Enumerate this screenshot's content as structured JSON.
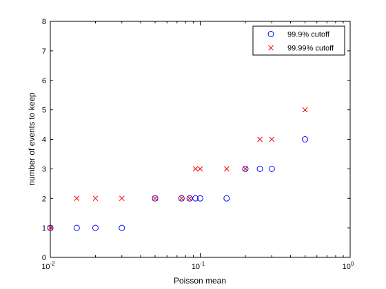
{
  "chart_data": {
    "type": "scatter",
    "xlabel": "Poisson mean",
    "ylabel": "number of events to keep",
    "xscale": "log",
    "xlim": [
      0.01,
      1
    ],
    "ylim": [
      0,
      8
    ],
    "x_ticks": [
      {
        "base": "10",
        "exp": "-2"
      },
      {
        "base": "10",
        "exp": "-1"
      },
      {
        "base": "10",
        "exp": "0"
      }
    ],
    "y_ticks": [
      "0",
      "1",
      "2",
      "3",
      "4",
      "5",
      "6",
      "7",
      "8"
    ],
    "legend_position": "top-right",
    "grid": false,
    "series": [
      {
        "name": "99.9% cutoff",
        "marker": "circle",
        "color": "#0000ff",
        "x": [
          0.01,
          0.015,
          0.02,
          0.03,
          0.05,
          0.075,
          0.085,
          0.093,
          0.1,
          0.15,
          0.2,
          0.25,
          0.3,
          0.5
        ],
        "y": [
          1,
          1,
          1,
          1,
          2,
          2,
          2,
          2,
          2,
          2,
          3,
          3,
          3,
          4
        ]
      },
      {
        "name": "99.99% cutoff",
        "marker": "x",
        "color": "#ff0000",
        "x": [
          0.01,
          0.015,
          0.02,
          0.03,
          0.05,
          0.075,
          0.085,
          0.093,
          0.1,
          0.15,
          0.2,
          0.25,
          0.3,
          0.5
        ],
        "y": [
          1,
          2,
          2,
          2,
          2,
          2,
          2,
          3,
          3,
          3,
          3,
          4,
          4,
          5
        ]
      }
    ]
  }
}
